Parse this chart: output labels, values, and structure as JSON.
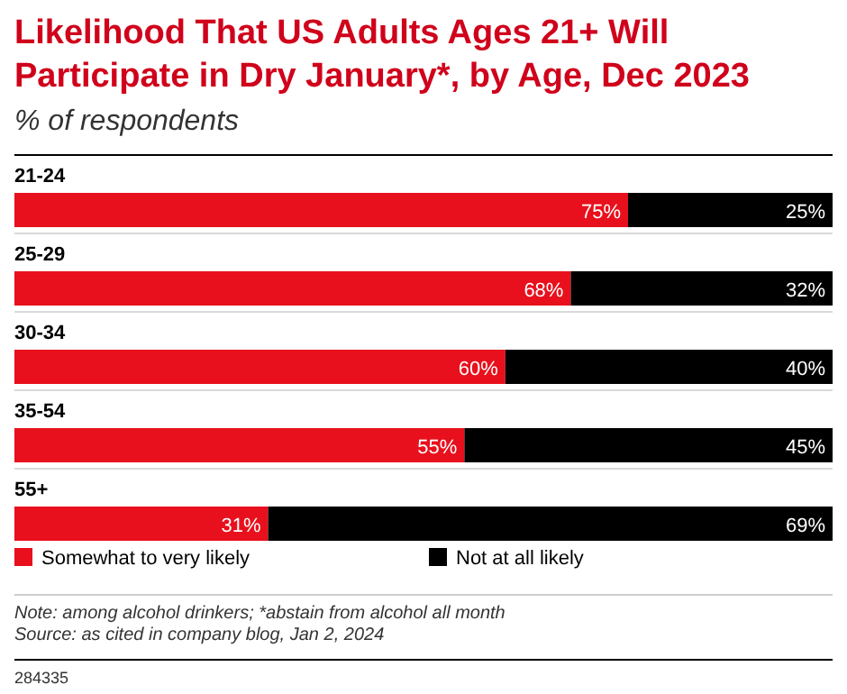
{
  "chart_data": {
    "type": "bar",
    "orientation": "horizontal",
    "stacked": true,
    "title": "Likelihood That US Adults Ages 21+ Will Participate in Dry January*, by Age, Dec 2023",
    "subtitle": "% of respondents",
    "categories": [
      "21-24",
      "25-29",
      "30-34",
      "35-54",
      "55+"
    ],
    "xlim": [
      0,
      100
    ],
    "legend": "bottom",
    "series": [
      {
        "name": "Somewhat to very likely",
        "color": "#e8101c",
        "values": [
          75,
          68,
          60,
          55,
          31
        ],
        "value_labels": [
          "75%",
          "68%",
          "60%",
          "55%",
          "31%"
        ]
      },
      {
        "name": "Not at all likely",
        "color": "#000000",
        "values": [
          25,
          32,
          40,
          45,
          69
        ],
        "value_labels": [
          "25%",
          "32%",
          "40%",
          "45%",
          "69%"
        ]
      }
    ],
    "annotations": [
      "Note: among alcohol drinkers; *abstain from alcohol all month",
      "Source: as cited in company blog, Jan 2, 2024",
      "284335"
    ]
  }
}
